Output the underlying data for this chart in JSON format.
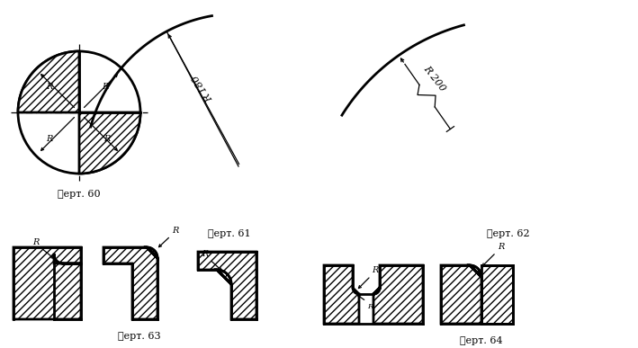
{
  "background": "#ffffff",
  "line_color": "#000000",
  "captions": [
    "䉾ерт. 60",
    "䉾ерт. 61",
    "䉾ерт. 62",
    "䉾ерт. 63",
    "䉾ерт. 64"
  ],
  "fig_width": 7.09,
  "fig_height": 3.87,
  "dpi": 100
}
